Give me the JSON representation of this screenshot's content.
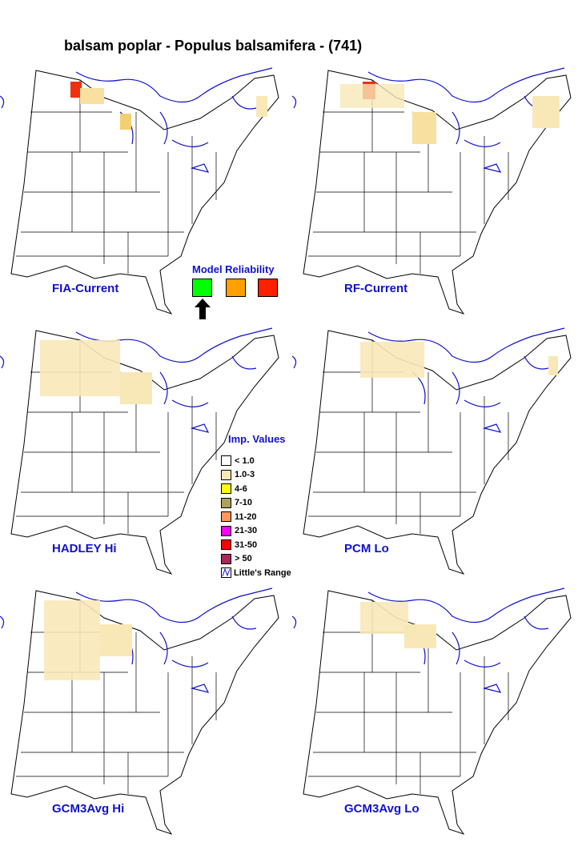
{
  "title": "balsam poplar - Populus balsamifera - (741)",
  "panels": [
    {
      "label": "FIA-Current"
    },
    {
      "label": "RF-Current"
    },
    {
      "label": "HADLEY Hi"
    },
    {
      "label": "PCM Lo"
    },
    {
      "label": "GCM3Avg Hi"
    },
    {
      "label": "GCM3Avg Lo"
    }
  ],
  "model_reliability": {
    "title": "Model Reliability"
  },
  "legend": {
    "title": "Imp. Values",
    "items": [
      {
        "label": "< 1.0",
        "color": "#ffffff"
      },
      {
        "label": "1.0-3",
        "color": "#f8e8b8"
      },
      {
        "label": "4-6",
        "color": "#ffff00"
      },
      {
        "label": "7-10",
        "color": "#b0a060"
      },
      {
        "label": "11-20",
        "color": "#ff9860"
      },
      {
        "label": "21-30",
        "color": "#ff00ff"
      },
      {
        "label": "31-50",
        "color": "#ff0000"
      },
      {
        "label": "> 50",
        "color": "#a82858"
      }
    ],
    "range_label": "Little's Range"
  }
}
